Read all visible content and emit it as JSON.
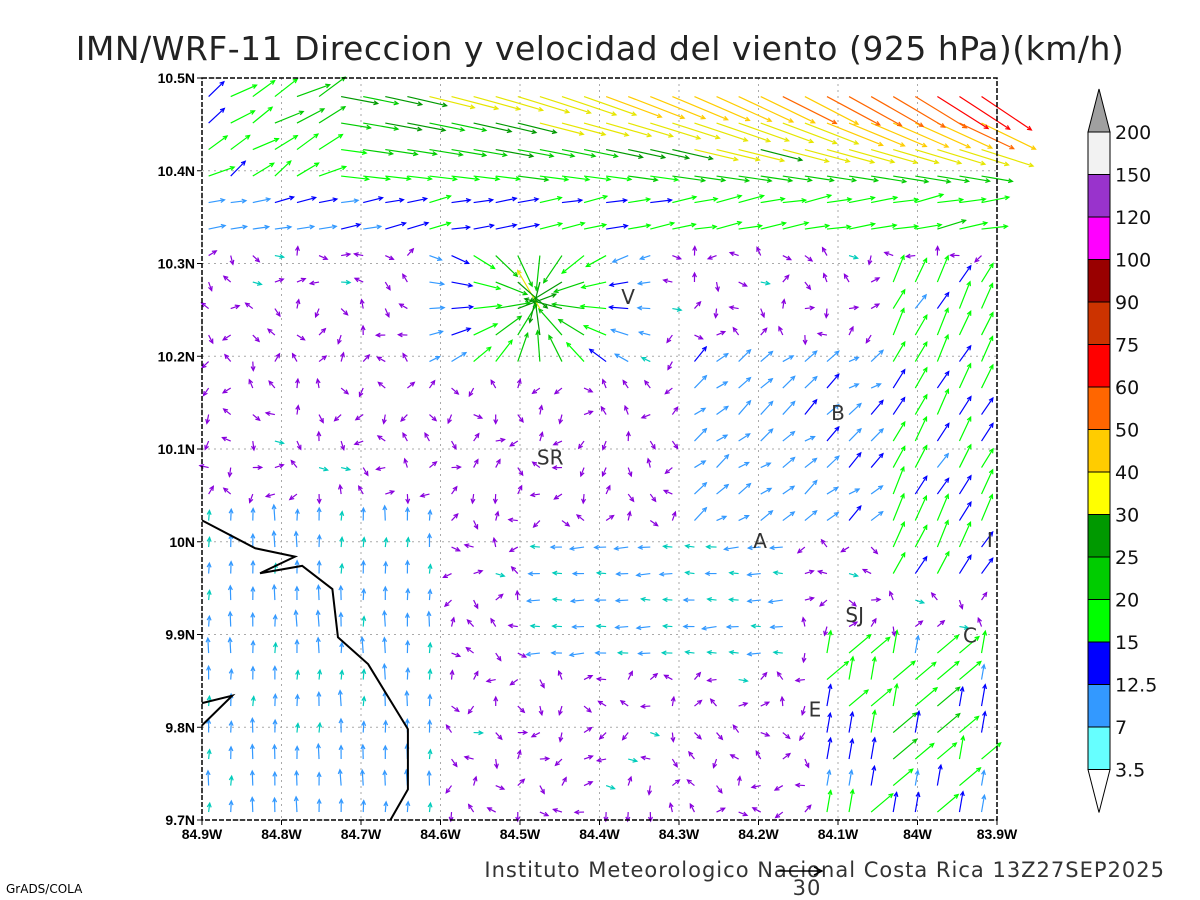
{
  "chart_data": {
    "type": "vector-field",
    "title": "IMN/WRF-11 Direccion y velocidad del viento (925 hPa)(km/h)",
    "xlim": [
      -84.9,
      -83.9
    ],
    "ylim": [
      9.7,
      10.5
    ],
    "grid": true,
    "x_ticks": [
      {
        "value": -84.9,
        "label": "84.9W"
      },
      {
        "value": -84.8,
        "label": "84.8W"
      },
      {
        "value": -84.7,
        "label": "84.7W"
      },
      {
        "value": -84.6,
        "label": "84.6W"
      },
      {
        "value": -84.5,
        "label": "84.5W"
      },
      {
        "value": -84.4,
        "label": "84.4W"
      },
      {
        "value": -84.3,
        "label": "84.3W"
      },
      {
        "value": -84.2,
        "label": "84.2W"
      },
      {
        "value": -84.1,
        "label": "84.1W"
      },
      {
        "value": -84.0,
        "label": "84W"
      },
      {
        "value": -83.9,
        "label": "83.9W"
      }
    ],
    "y_ticks": [
      {
        "value": 9.7,
        "label": "9.7N"
      },
      {
        "value": 9.8,
        "label": "9.8N"
      },
      {
        "value": 9.9,
        "label": "9.9N"
      },
      {
        "value": 10.0,
        "label": "10N"
      },
      {
        "value": 10.1,
        "label": "10.1N"
      },
      {
        "value": 10.2,
        "label": "10.2N"
      },
      {
        "value": 10.3,
        "label": "10.3N"
      },
      {
        "value": 10.4,
        "label": "10.4N"
      },
      {
        "value": 10.5,
        "label": "10.5N"
      }
    ],
    "cities": [
      {
        "label": "V",
        "lon": -84.364,
        "lat": 10.264
      },
      {
        "label": "SR",
        "lon": -84.462,
        "lat": 10.091
      },
      {
        "label": "B",
        "lon": -84.1,
        "lat": 10.139
      },
      {
        "label": "A",
        "lon": -84.198,
        "lat": 10.001
      },
      {
        "label": "I",
        "lon": -83.909,
        "lat": 10.002
      },
      {
        "label": "SJ",
        "lon": -84.079,
        "lat": 9.921
      },
      {
        "label": "C",
        "lon": -83.934,
        "lat": 9.899
      },
      {
        "label": "E",
        "lon": -84.129,
        "lat": 9.819
      }
    ],
    "reference_vector": {
      "value": 30,
      "label": "30"
    },
    "colorbar": {
      "labels": [
        "3.5",
        "7",
        "12.5",
        "15",
        "20",
        "25",
        "30",
        "40",
        "50",
        "60",
        "75",
        "90",
        "100",
        "120",
        "150",
        "200"
      ],
      "colors": [
        "#66ffff",
        "#3399ff",
        "#0000ff",
        "#00ff00",
        "#00cc00",
        "#009900",
        "#ffff00",
        "#ffcc00",
        "#ff6600",
        "#ff0000",
        "#cc3300",
        "#990000",
        "#ff00ff",
        "#9933cc",
        "#f2f2f2"
      ],
      "low_color": "#ffffff",
      "high_color": "#a0a0a0"
    }
  },
  "footer": "Instituto Meteorologico Nacional Costa Rica 13Z27SEP2025",
  "credit": "GrADS/COLA"
}
